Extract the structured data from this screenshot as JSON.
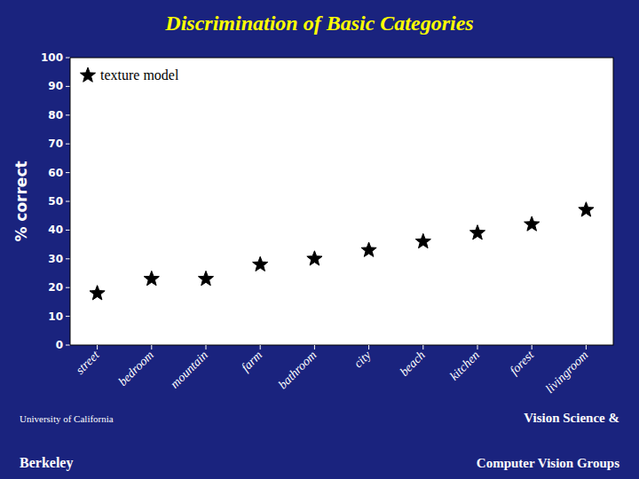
{
  "chart_data": {
    "type": "scatter",
    "title": "Discrimination of Basic Categories",
    "y_label": "% correct",
    "categories": [
      "street",
      "bedroom",
      "mountain",
      "farm",
      "bathroom",
      "city",
      "beach",
      "kitchen",
      "forest",
      "livingroom"
    ],
    "series": [
      {
        "name": "texture model",
        "color": "#000000",
        "marker": "star",
        "values": [
          18,
          23,
          23,
          28,
          30,
          33,
          36,
          39,
          42,
          47
        ]
      }
    ],
    "ylim": [
      0,
      100
    ],
    "yticks": [
      0,
      10,
      20,
      30,
      40,
      50,
      60,
      70,
      80,
      90,
      100
    ],
    "grid": false,
    "legend": "upper left",
    "annotations": [
      "University of California",
      "Berkeley",
      "Vision Science &",
      "Computer Vision Groups"
    ]
  }
}
